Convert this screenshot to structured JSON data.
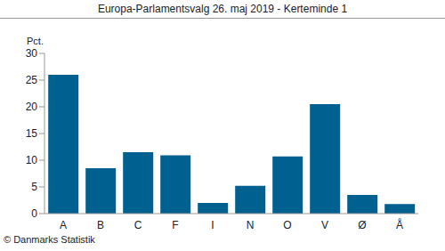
{
  "chart_data": {
    "type": "bar",
    "title": "Europa-Parlamentsvalg 26. maj 2019 - Kerteminde 1",
    "y_label": "Pct.",
    "annotation": "© Danmarks Statistik",
    "categories": [
      "A",
      "B",
      "C",
      "F",
      "I",
      "N",
      "O",
      "V",
      "Ø",
      "Å"
    ],
    "values": [
      26.0,
      8.5,
      11.5,
      10.9,
      2.0,
      5.2,
      10.7,
      20.5,
      3.5,
      1.8
    ],
    "color": "#00608f",
    "ylim": [
      0,
      30
    ],
    "yticks": [
      0,
      5,
      10,
      15,
      20,
      25,
      30
    ],
    "grid": false
  }
}
